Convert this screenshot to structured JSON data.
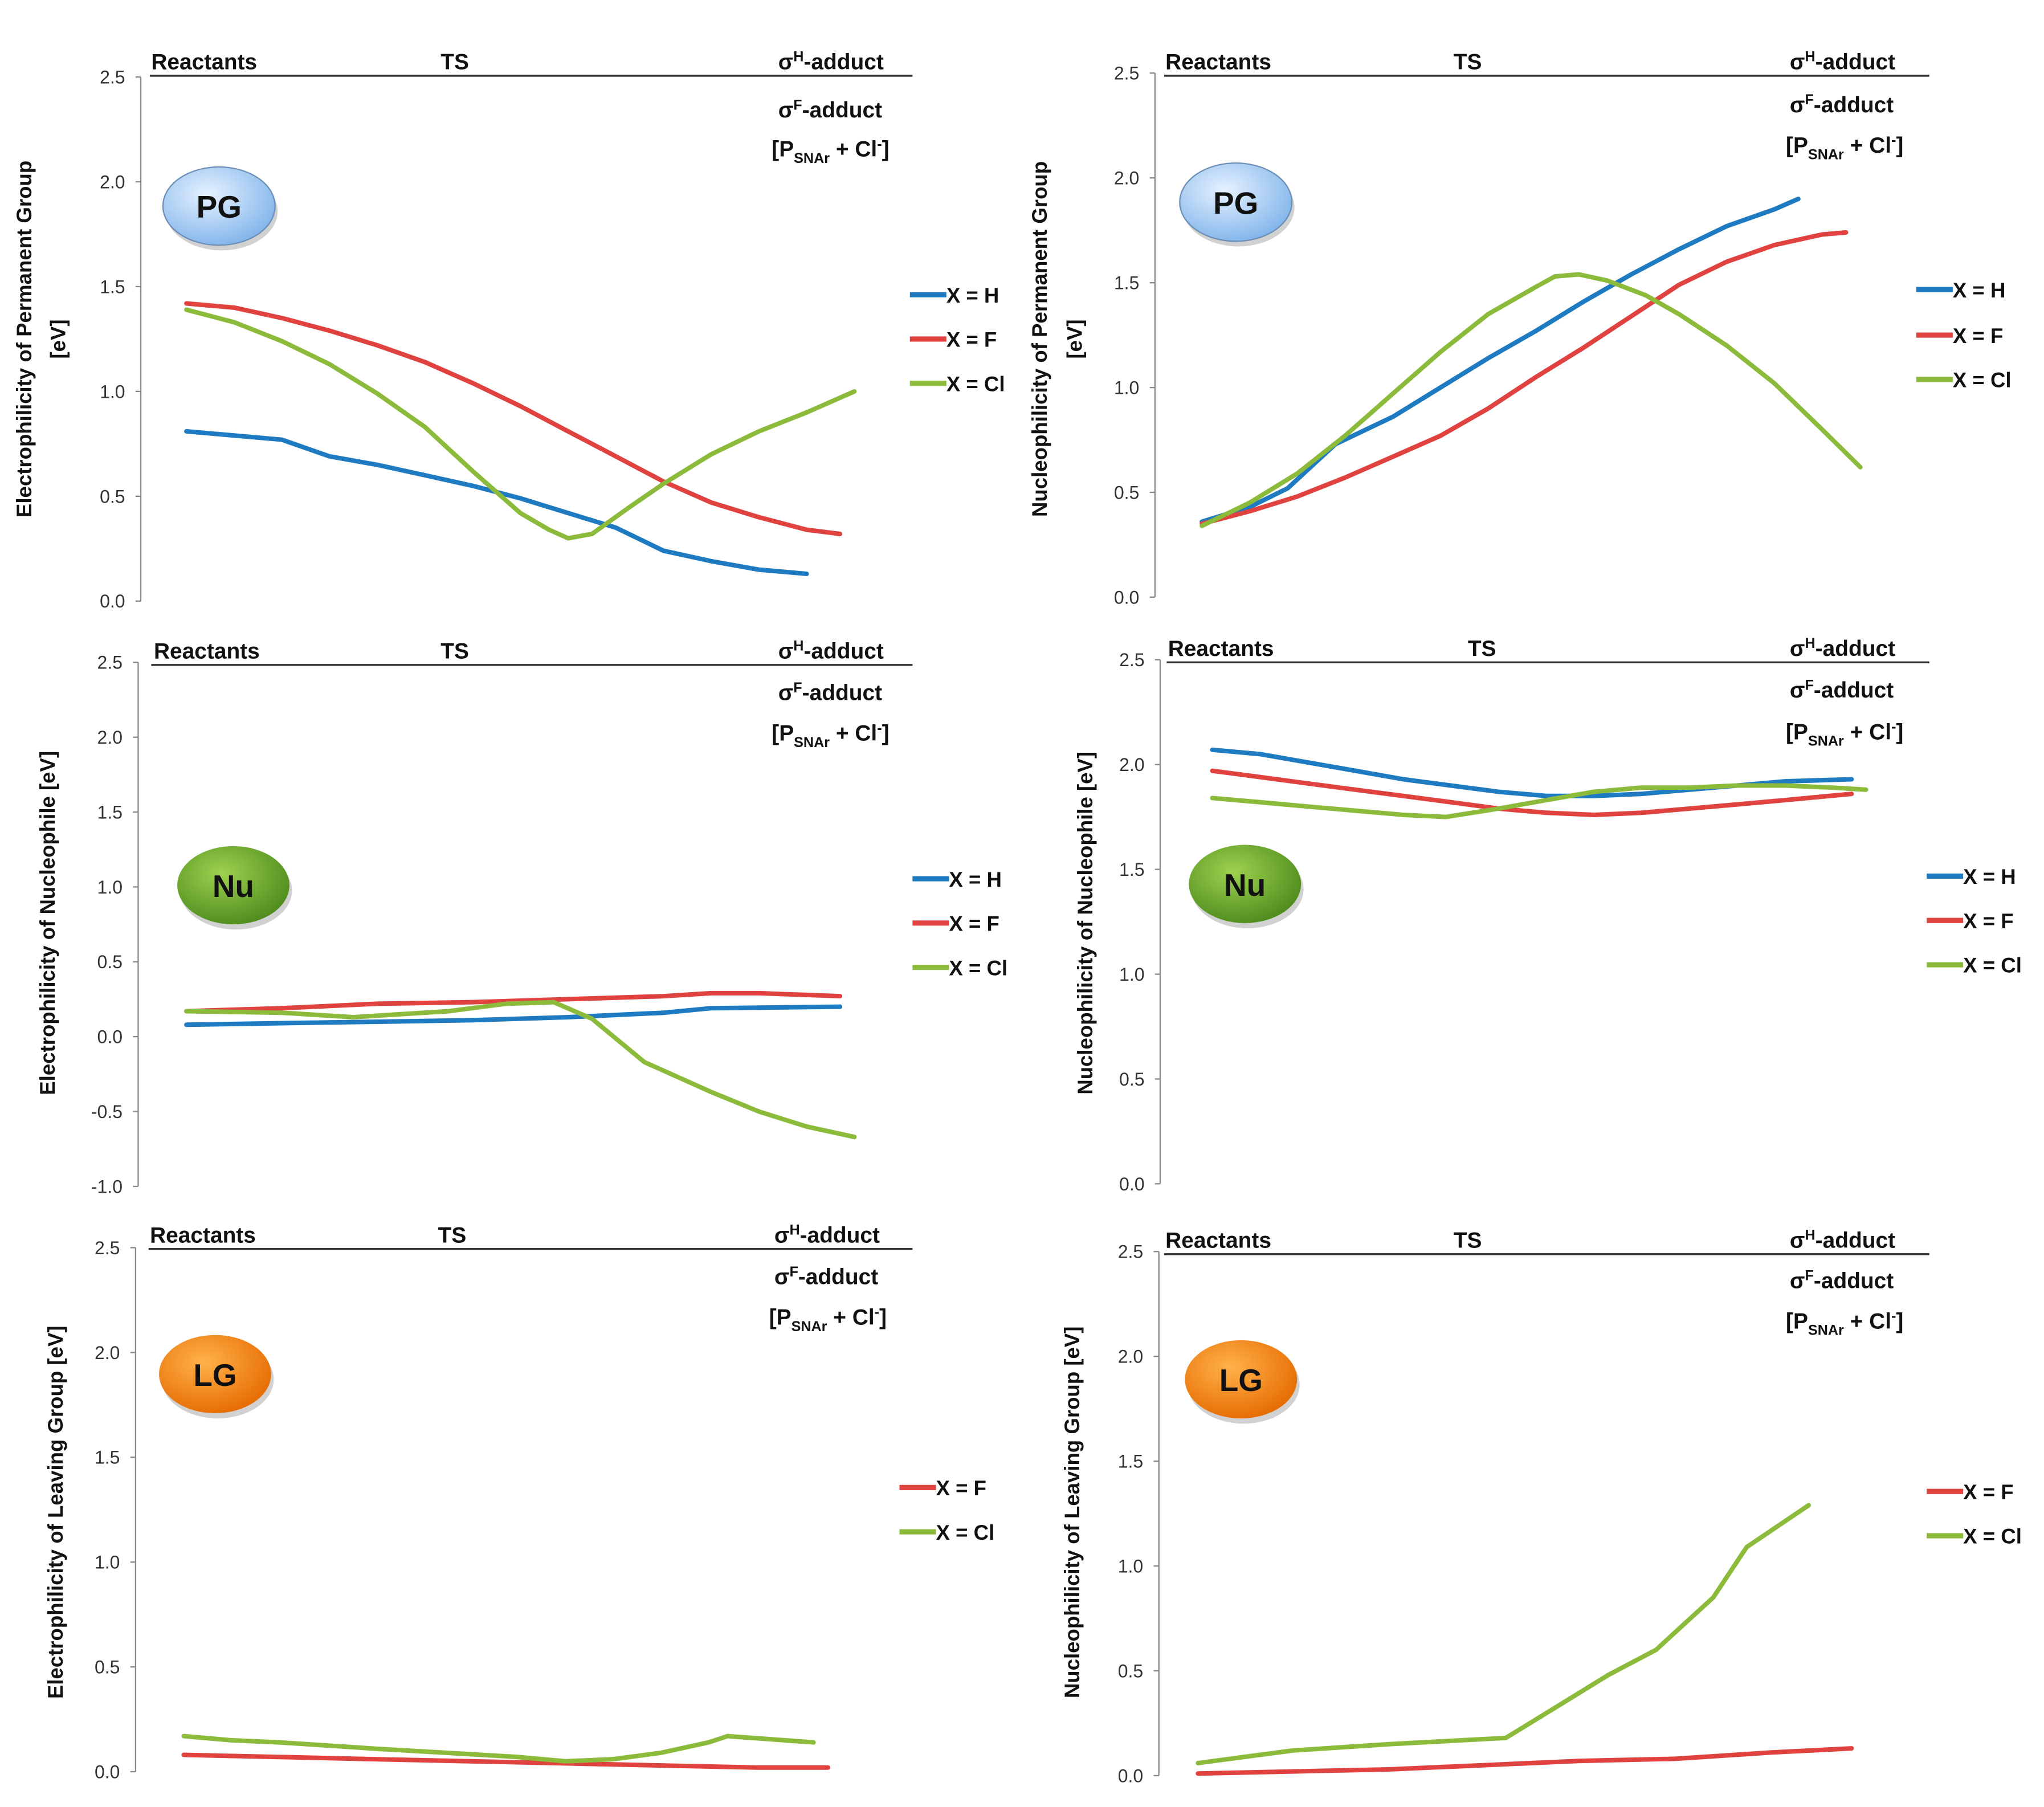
{
  "chart_data": [
    {
      "type": "line",
      "id": "pg-electrophilicity",
      "badge": "PG",
      "ylabel": "Electrophilicity of Permanent Group",
      "ylabel_unit": "[eV]",
      "ylim": [
        0,
        2.5
      ],
      "yticks": [
        "0.0",
        "0.5",
        "1.0",
        "1.5",
        "2.0",
        "2.5"
      ],
      "series": [
        {
          "name": "X = H",
          "color": "#1f7bc1",
          "points": [
            [
              0,
              0.81
            ],
            [
              1,
              0.79
            ],
            [
              2,
              0.77
            ],
            [
              3,
              0.69
            ],
            [
              4,
              0.65
            ],
            [
              5,
              0.6
            ],
            [
              6,
              0.55
            ],
            [
              7,
              0.49
            ],
            [
              8,
              0.42
            ],
            [
              9,
              0.35
            ],
            [
              10,
              0.24
            ],
            [
              11,
              0.19
            ],
            [
              12,
              0.15
            ],
            [
              13,
              0.13
            ]
          ]
        },
        {
          "name": "X = F",
          "color": "#e0423f",
          "points": [
            [
              0,
              1.42
            ],
            [
              1,
              1.4
            ],
            [
              2,
              1.35
            ],
            [
              3,
              1.29
            ],
            [
              4,
              1.22
            ],
            [
              5,
              1.14
            ],
            [
              6,
              1.04
            ],
            [
              7,
              0.93
            ],
            [
              8,
              0.81
            ],
            [
              9,
              0.69
            ],
            [
              10,
              0.57
            ],
            [
              11,
              0.47
            ],
            [
              12,
              0.4
            ],
            [
              13,
              0.34
            ],
            [
              13.7,
              0.32
            ]
          ]
        },
        {
          "name": "X = Cl",
          "color": "#8cbb3c",
          "points": [
            [
              0,
              1.39
            ],
            [
              1,
              1.33
            ],
            [
              2,
              1.24
            ],
            [
              3,
              1.13
            ],
            [
              4,
              0.99
            ],
            [
              5,
              0.83
            ],
            [
              6,
              0.62
            ],
            [
              7,
              0.42
            ],
            [
              7.6,
              0.34
            ],
            [
              8,
              0.3
            ],
            [
              8.5,
              0.32
            ],
            [
              9.3,
              0.45
            ],
            [
              10,
              0.56
            ],
            [
              11,
              0.7
            ],
            [
              12,
              0.81
            ],
            [
              13,
              0.9
            ],
            [
              14,
              1.0
            ]
          ]
        }
      ]
    },
    {
      "type": "line",
      "id": "pg-nucleophilicity",
      "badge": "PG",
      "ylabel": "Nucleophilicity of Permanent Group",
      "ylabel_unit": "[eV]",
      "ylim": [
        0,
        2.5
      ],
      "yticks": [
        "0.0",
        "0.5",
        "1.0",
        "1.5",
        "2.0",
        "2.5"
      ],
      "series": [
        {
          "name": "X = H",
          "color": "#1f7bc1",
          "points": [
            [
              0,
              0.36
            ],
            [
              1,
              0.43
            ],
            [
              1.8,
              0.52
            ],
            [
              2.8,
              0.73
            ],
            [
              4,
              0.86
            ],
            [
              5,
              1.0
            ],
            [
              6,
              1.14
            ],
            [
              7,
              1.27
            ],
            [
              8,
              1.41
            ],
            [
              9,
              1.54
            ],
            [
              10,
              1.66
            ],
            [
              11,
              1.77
            ],
            [
              12,
              1.85
            ],
            [
              12.5,
              1.9
            ]
          ]
        },
        {
          "name": "X = F",
          "color": "#e0423f",
          "points": [
            [
              0,
              0.35
            ],
            [
              1,
              0.41
            ],
            [
              2,
              0.48
            ],
            [
              3,
              0.57
            ],
            [
              4,
              0.67
            ],
            [
              5,
              0.77
            ],
            [
              6,
              0.9
            ],
            [
              7,
              1.05
            ],
            [
              8,
              1.19
            ],
            [
              9,
              1.34
            ],
            [
              10,
              1.49
            ],
            [
              11,
              1.6
            ],
            [
              12,
              1.68
            ],
            [
              13,
              1.73
            ],
            [
              13.5,
              1.74
            ]
          ]
        },
        {
          "name": "X = Cl",
          "color": "#8cbb3c",
          "points": [
            [
              0,
              0.34
            ],
            [
              1,
              0.45
            ],
            [
              2,
              0.59
            ],
            [
              3,
              0.77
            ],
            [
              4,
              0.97
            ],
            [
              5,
              1.17
            ],
            [
              6,
              1.35
            ],
            [
              7,
              1.48
            ],
            [
              7.4,
              1.53
            ],
            [
              7.9,
              1.54
            ],
            [
              8.5,
              1.51
            ],
            [
              9.3,
              1.44
            ],
            [
              10,
              1.35
            ],
            [
              11,
              1.2
            ],
            [
              12,
              1.02
            ],
            [
              13,
              0.8
            ],
            [
              13.8,
              0.62
            ]
          ]
        }
      ]
    },
    {
      "type": "line",
      "id": "nu-electrophilicity",
      "badge": "Nu",
      "ylabel": "Electrophilicity of Nucleophile [eV]",
      "ylabel_unit": "",
      "ylim": [
        -1.0,
        2.5
      ],
      "yticks": [
        "-1.0",
        "-0.5",
        "0.0",
        "0.5",
        "1.0",
        "1.5",
        "2.0",
        "2.5"
      ],
      "series": [
        {
          "name": "X = H",
          "color": "#1f7bc1",
          "points": [
            [
              0,
              0.08
            ],
            [
              2,
              0.09
            ],
            [
              4,
              0.1
            ],
            [
              6,
              0.11
            ],
            [
              8,
              0.13
            ],
            [
              10,
              0.16
            ],
            [
              11,
              0.19
            ],
            [
              13.7,
              0.2
            ]
          ]
        },
        {
          "name": "X = F",
          "color": "#e0423f",
          "points": [
            [
              0,
              0.17
            ],
            [
              2,
              0.19
            ],
            [
              4,
              0.22
            ],
            [
              6,
              0.23
            ],
            [
              8,
              0.25
            ],
            [
              10,
              0.27
            ],
            [
              11,
              0.29
            ],
            [
              12,
              0.29
            ],
            [
              13.7,
              0.27
            ]
          ]
        },
        {
          "name": "X = Cl",
          "color": "#8cbb3c",
          "points": [
            [
              0,
              0.17
            ],
            [
              2,
              0.16
            ],
            [
              3.5,
              0.13
            ],
            [
              5.5,
              0.17
            ],
            [
              6.7,
              0.22
            ],
            [
              7.7,
              0.23
            ],
            [
              8.5,
              0.12
            ],
            [
              9.6,
              -0.17
            ],
            [
              11,
              -0.37
            ],
            [
              12,
              -0.5
            ],
            [
              13,
              -0.6
            ],
            [
              14,
              -0.67
            ]
          ]
        }
      ]
    },
    {
      "type": "line",
      "id": "nu-nucleophilicity",
      "badge": "Nu",
      "ylabel": "Nucleophilicity of Nucleophile [eV]",
      "ylabel_unit": "",
      "ylim": [
        0,
        2.5
      ],
      "yticks": [
        "0.0",
        "0.5",
        "1.0",
        "1.5",
        "2.0",
        "2.5"
      ],
      "series": [
        {
          "name": "X = H",
          "color": "#1f7bc1",
          "points": [
            [
              0,
              2.07
            ],
            [
              1,
              2.05
            ],
            [
              2,
              2.01
            ],
            [
              3,
              1.97
            ],
            [
              4,
              1.93
            ],
            [
              5,
              1.9
            ],
            [
              6,
              1.87
            ],
            [
              7,
              1.85
            ],
            [
              8,
              1.85
            ],
            [
              9,
              1.86
            ],
            [
              10,
              1.88
            ],
            [
              11,
              1.9
            ],
            [
              12,
              1.92
            ],
            [
              13.4,
              1.93
            ]
          ]
        },
        {
          "name": "X = F",
          "color": "#e0423f",
          "points": [
            [
              0,
              1.97
            ],
            [
              1,
              1.94
            ],
            [
              2,
              1.91
            ],
            [
              3,
              1.88
            ],
            [
              4,
              1.85
            ],
            [
              5,
              1.82
            ],
            [
              6,
              1.79
            ],
            [
              7,
              1.77
            ],
            [
              8,
              1.76
            ],
            [
              9,
              1.77
            ],
            [
              10,
              1.79
            ],
            [
              11,
              1.81
            ],
            [
              12,
              1.83
            ],
            [
              13.4,
              1.86
            ]
          ]
        },
        {
          "name": "X = Cl",
          "color": "#8cbb3c",
          "points": [
            [
              0,
              1.84
            ],
            [
              1,
              1.82
            ],
            [
              2,
              1.8
            ],
            [
              3,
              1.78
            ],
            [
              4,
              1.76
            ],
            [
              4.9,
              1.75
            ],
            [
              6,
              1.79
            ],
            [
              7,
              1.83
            ],
            [
              8,
              1.87
            ],
            [
              9,
              1.89
            ],
            [
              10,
              1.89
            ],
            [
              11,
              1.9
            ],
            [
              12,
              1.9
            ],
            [
              13,
              1.89
            ],
            [
              13.7,
              1.88
            ]
          ]
        }
      ]
    },
    {
      "type": "line",
      "id": "lg-electrophilicity",
      "badge": "LG",
      "ylabel": "Electrophilicity of Leaving Group [eV]",
      "ylabel_unit": "",
      "ylim": [
        0,
        2.5
      ],
      "yticks": [
        "0.0",
        "0.5",
        "1.0",
        "1.5",
        "2.0",
        "2.5"
      ],
      "series": [
        {
          "name": "X = F",
          "color": "#e0423f",
          "points": [
            [
              0,
              0.08
            ],
            [
              2,
              0.07
            ],
            [
              4,
              0.06
            ],
            [
              6,
              0.05
            ],
            [
              8,
              0.04
            ],
            [
              10,
              0.03
            ],
            [
              12,
              0.02
            ],
            [
              13.5,
              0.02
            ]
          ]
        },
        {
          "name": "X = Cl",
          "color": "#8cbb3c",
          "points": [
            [
              0,
              0.17
            ],
            [
              1,
              0.15
            ],
            [
              2,
              0.14
            ],
            [
              4,
              0.11
            ],
            [
              5.5,
              0.09
            ],
            [
              7,
              0.07
            ],
            [
              8,
              0.05
            ],
            [
              9,
              0.06
            ],
            [
              10,
              0.09
            ],
            [
              11,
              0.14
            ],
            [
              11.4,
              0.17
            ],
            [
              13.2,
              0.14
            ]
          ]
        }
      ]
    },
    {
      "type": "line",
      "id": "lg-nucleophilicity",
      "badge": "LG",
      "ylabel": "Nucleophilicity of Leaving Group [eV]",
      "ylabel_unit": "",
      "ylim": [
        0,
        2.5
      ],
      "yticks": [
        "0.0",
        "0.5",
        "1.0",
        "1.5",
        "2.0",
        "2.5"
      ],
      "series": [
        {
          "name": "X = F",
          "color": "#e0423f",
          "points": [
            [
              0,
              0.01
            ],
            [
              2,
              0.02
            ],
            [
              4,
              0.03
            ],
            [
              6,
              0.05
            ],
            [
              8,
              0.07
            ],
            [
              10,
              0.08
            ],
            [
              12,
              0.11
            ],
            [
              13.7,
              0.13
            ]
          ]
        },
        {
          "name": "X = Cl",
          "color": "#8cbb3c",
          "points": [
            [
              0,
              0.06
            ],
            [
              1,
              0.09
            ],
            [
              2,
              0.12
            ],
            [
              4,
              0.15
            ],
            [
              6.45,
              0.18
            ],
            [
              7.6,
              0.34
            ],
            [
              8.6,
              0.48
            ],
            [
              9.6,
              0.6
            ],
            [
              10.8,
              0.85
            ],
            [
              11.5,
              1.09
            ],
            [
              12.8,
              1.29
            ]
          ]
        }
      ]
    }
  ],
  "stages": {
    "reactants": "Reactants",
    "ts": "TS",
    "sigma_h": {
      "base": "σ",
      "sup": "H",
      "rest": "-adduct"
    },
    "sigma_f": {
      "base": "σ",
      "sup": "F",
      "rest": "-adduct"
    },
    "product": {
      "open": "[P",
      "sub": "SNAr",
      "mid": " + Cl",
      "sup": "-",
      "close": "]"
    }
  },
  "badge_colors": {
    "PG": "#9cc7f2",
    "Nu": "#6aa52c",
    "LG": "#f78a1d"
  }
}
